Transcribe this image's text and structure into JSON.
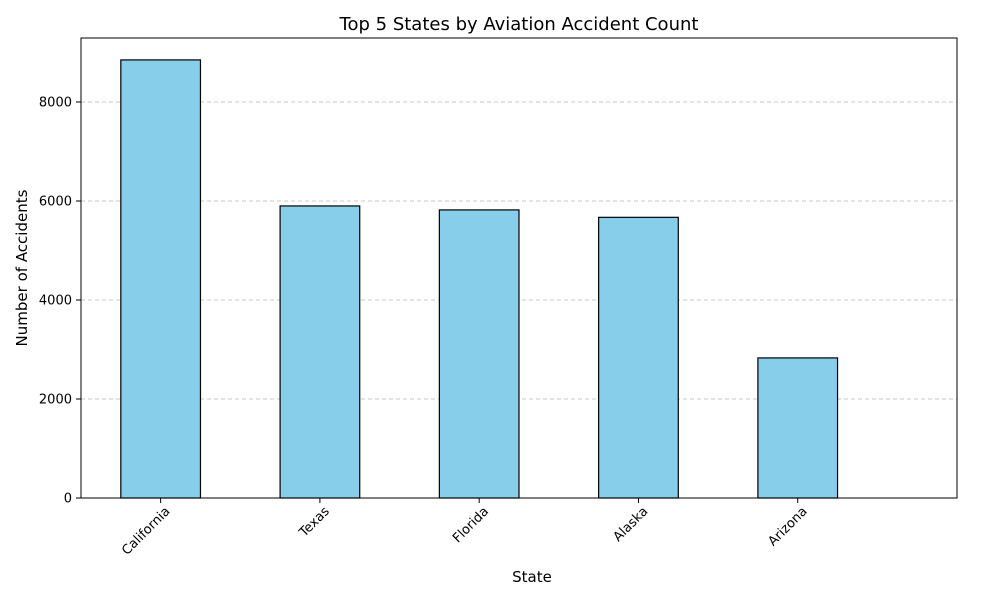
{
  "chart_data": {
    "type": "bar",
    "title": "Top 5 States by Aviation Accident Count",
    "xlabel": "State",
    "ylabel": "Number of Accidents",
    "categories": [
      "California",
      "Texas",
      "Florida",
      "Alaska",
      "Arizona"
    ],
    "values": [
      8850,
      5900,
      5820,
      5670,
      2830
    ],
    "ylim": [
      0,
      9293
    ],
    "yticks": [
      0,
      2000,
      4000,
      6000,
      8000
    ],
    "tick_labels": [
      "0",
      "2000",
      "4000",
      "6000",
      "8000"
    ],
    "grid": "y-axis dashed",
    "legend": "none",
    "colors": {
      "bar_fill": "#87CEEB",
      "bar_edge": "#000000",
      "grid": "#c8c8c8"
    }
  }
}
